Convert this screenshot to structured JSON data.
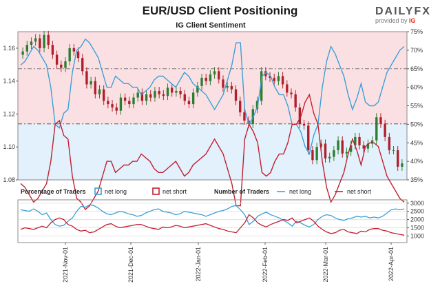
{
  "header": {
    "title": "EUR/USD Client Positioning",
    "logo_main": "DAILY",
    "logo_fx": "FX",
    "logo_sub": "provided by",
    "logo_ig": "IG"
  },
  "colors": {
    "net_long": "#3aa0d6",
    "net_short": "#c21f2f",
    "candle_up": "#2e7d32",
    "candle_down": "#b0202c",
    "upper_zone": "#fbe0e3",
    "lower_zone": "#e2f1fb"
  },
  "chart_data": [
    {
      "type": "candlestick+line",
      "title": "IG Client Sentiment",
      "left_axis": {
        "ticks": [
          "1.16",
          "1.14",
          "1.12",
          "1.10",
          "1.08"
        ],
        "range": [
          1.08,
          1.17
        ]
      },
      "right_axis": {
        "ticks": [
          "75%",
          "70%",
          "65%",
          "60%",
          "55%",
          "50%",
          "45%",
          "40%",
          "35%"
        ],
        "range": [
          35,
          75
        ]
      },
      "reference_lines": {
        "price": 1.114,
        "percent": 65
      },
      "price_close": [
        1.158,
        1.162,
        1.164,
        1.166,
        1.16,
        1.168,
        1.162,
        1.156,
        1.15,
        1.148,
        1.152,
        1.16,
        1.158,
        1.154,
        1.146,
        1.138,
        1.14,
        1.132,
        1.135,
        1.128,
        1.126,
        1.124,
        1.122,
        1.13,
        1.128,
        1.126,
        1.13,
        1.133,
        1.128,
        1.132,
        1.13,
        1.134,
        1.132,
        1.131,
        1.136,
        1.133,
        1.134,
        1.132,
        1.128,
        1.126,
        1.133,
        1.137,
        1.142,
        1.14,
        1.144,
        1.146,
        1.141,
        1.136,
        1.137,
        1.135,
        1.128,
        1.121,
        1.116,
        1.114,
        1.123,
        1.128,
        1.146,
        1.143,
        1.142,
        1.14,
        1.143,
        1.138,
        1.133,
        1.132,
        1.124,
        1.114,
        1.113,
        1.098,
        1.092,
        1.1,
        1.102,
        1.093,
        1.094,
        1.098,
        1.104,
        1.096,
        1.097,
        1.101,
        1.106,
        1.101,
        1.099,
        1.102,
        1.104,
        1.118,
        1.114,
        1.106,
        1.098,
        1.098,
        1.088,
        1.09
      ],
      "net_long_pct": [
        66,
        67,
        69,
        71,
        70,
        68,
        66,
        60,
        50,
        49,
        53,
        54,
        64,
        70,
        71,
        73,
        72,
        70,
        68,
        64,
        60,
        60,
        63,
        62,
        61,
        61,
        60,
        60,
        58,
        59,
        60,
        62,
        63,
        63,
        62,
        61,
        60,
        62,
        64,
        63,
        61,
        60,
        59,
        58,
        56,
        54,
        56,
        58,
        62,
        66,
        72,
        72,
        54,
        50,
        52,
        55,
        63,
        64,
        63,
        60,
        58,
        58,
        55,
        50,
        50,
        48,
        44,
        42,
        47,
        50,
        60,
        67,
        71,
        69,
        66,
        63,
        58,
        54,
        57,
        61,
        56,
        55,
        55,
        56,
        60,
        64,
        66,
        68,
        70,
        71
      ],
      "net_short_pct": [
        34,
        33,
        31,
        29,
        30,
        32,
        34,
        40,
        50,
        51,
        47,
        46,
        36,
        30,
        29,
        27,
        28,
        30,
        32,
        36,
        40,
        40,
        37,
        38,
        39,
        39,
        40,
        40,
        42,
        41,
        40,
        38,
        37,
        37,
        38,
        39,
        40,
        38,
        36,
        37,
        39,
        40,
        41,
        42,
        44,
        46,
        44,
        42,
        38,
        34,
        28,
        28,
        46,
        50,
        48,
        45,
        37,
        36,
        37,
        40,
        42,
        42,
        45,
        50,
        50,
        52,
        56,
        58,
        53,
        50,
        40,
        33,
        29,
        31,
        34,
        37,
        42,
        46,
        43,
        39,
        44,
        45,
        45,
        44,
        40,
        36,
        34,
        32,
        30,
        29
      ]
    },
    {
      "type": "line",
      "left_legend_title": "Percentage of Traders",
      "right_legend_title": "Number of Traders",
      "series_names": [
        "net long",
        "net short"
      ],
      "y_ticks": [
        "3000",
        "2500",
        "2000",
        "1500",
        "1000"
      ],
      "y_range": [
        600,
        3200
      ],
      "x_labels": [
        "2021-Nov-01",
        "2021-Dec-01",
        "2022-Jan-01",
        "2022-Feb-01",
        "2022-Mar-01",
        "2022-Apr-01"
      ],
      "net_long_count": [
        2600,
        2550,
        2500,
        2650,
        2500,
        2300,
        2400,
        2000,
        1700,
        1600,
        1650,
        1900,
        2100,
        2500,
        2800,
        2750,
        2900,
        2850,
        2700,
        2500,
        2350,
        2300,
        2400,
        2500,
        2450,
        2350,
        2300,
        2200,
        2250,
        2400,
        2500,
        2600,
        2650,
        2500,
        2450,
        2400,
        2300,
        2350,
        2500,
        2450,
        2400,
        2350,
        2300,
        2200,
        2300,
        2400,
        2500,
        2550,
        2650,
        2800,
        2850,
        2600,
        2300,
        1700,
        1900,
        2200,
        2350,
        2450,
        2300,
        2200,
        2100,
        1950,
        1800,
        1600,
        1900,
        1800,
        1650,
        1550,
        1700,
        2000,
        2200,
        2300,
        2250,
        2100,
        2000,
        1950,
        2050,
        2100,
        2200,
        2150,
        2200,
        2100,
        2150,
        2100,
        2200,
        2400,
        2600,
        2650,
        2600,
        2650
      ],
      "net_short_count": [
        1400,
        1500,
        1450,
        1400,
        1500,
        1600,
        1500,
        1800,
        2000,
        2100,
        2000,
        1700,
        1600,
        1400,
        1300,
        1350,
        1200,
        1250,
        1400,
        1550,
        1700,
        1750,
        1600,
        1500,
        1550,
        1600,
        1650,
        1700,
        1700,
        1600,
        1500,
        1450,
        1400,
        1550,
        1500,
        1550,
        1650,
        1600,
        1500,
        1550,
        1600,
        1650,
        1700,
        1750,
        1650,
        1550,
        1450,
        1400,
        1300,
        1250,
        1200,
        1500,
        1800,
        2300,
        2100,
        1800,
        1650,
        1550,
        1700,
        1800,
        1900,
        2000,
        1950,
        2100,
        1800,
        1900,
        2000,
        2100,
        1900,
        1600,
        1400,
        1250,
        1150,
        1200,
        1350,
        1400,
        1250,
        1200,
        1150,
        1300,
        1250,
        1400,
        1450,
        1450,
        1350,
        1300,
        1200,
        1150,
        1100,
        1050
      ]
    }
  ]
}
